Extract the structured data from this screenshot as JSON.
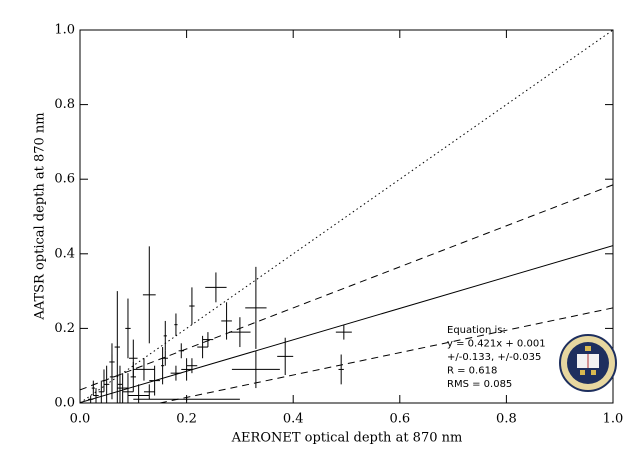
{
  "chart_data": {
    "type": "scatter",
    "x_label": "AERONET optical depth at 870 nm",
    "y_label": "AATSR optical depth at 870 nm",
    "xlim": [
      0,
      1
    ],
    "ylim": [
      0,
      1
    ],
    "xticks": [
      {
        "value": 0,
        "label": "0.0"
      },
      0.2,
      0.4,
      0.6,
      0.8,
      {
        "value": 1,
        "label": "1.0"
      }
    ],
    "yticks": [
      {
        "value": 0,
        "label": "0.0"
      },
      0.2,
      0.4,
      0.6,
      0.8,
      {
        "value": 1,
        "label": "1.0"
      }
    ],
    "color": "#000000",
    "points": {
      "x": [
        0.13,
        0.255,
        0.33,
        0.33,
        0.385,
        0.495,
        0.49,
        0.275,
        0.3,
        0.21,
        0.18,
        0.23,
        0.2,
        0.21,
        0.16,
        0.2,
        0.07,
        0.09,
        0.1,
        0.12,
        0.14,
        0.155,
        0.05,
        0.04,
        0.06,
        0.08,
        0.03,
        0.025,
        0.09,
        0.11,
        0.06,
        0.045,
        0.1,
        0.13,
        0.02,
        0.075,
        0.16,
        0.18,
        0.19,
        0.24
      ],
      "y": [
        0.29,
        0.31,
        0.255,
        0.09,
        0.125,
        0.19,
        0.09,
        0.22,
        0.19,
        0.26,
        0.21,
        0.15,
        0.09,
        0.1,
        0.12,
        0.01,
        0.15,
        0.2,
        0.12,
        0.09,
        0.06,
        0.1,
        0.05,
        0.03,
        0.07,
        0.04,
        0.02,
        0.04,
        0.03,
        0.02,
        0.11,
        0.06,
        0.07,
        0.03,
        0.01,
        0.05,
        0.18,
        0.08,
        0.14,
        0.17
      ],
      "xerr": [
        0.012,
        0.02,
        0.02,
        0.045,
        0.015,
        0.015,
        0.005,
        0.01,
        0.02,
        0.005,
        0.003,
        0.01,
        0.01,
        0.01,
        0.005,
        0.1,
        0.005,
        0.005,
        0.008,
        0.02,
        0.01,
        0.003,
        0.005,
        0.005,
        0.004,
        0.01,
        0.005,
        0.003,
        0.01,
        0.02,
        0.005,
        0.003,
        0.005,
        0.01,
        0.005,
        0.004,
        0.003,
        0.01,
        0.005,
        0.01
      ],
      "yerr": [
        0.13,
        0.04,
        0.11,
        0.05,
        0.05,
        0.02,
        0.04,
        0.05,
        0.04,
        0.05,
        0.03,
        0.03,
        0.03,
        0.02,
        0.02,
        0.005,
        0.15,
        0.08,
        0.05,
        0.03,
        0.04,
        0.05,
        0.05,
        0.03,
        0.06,
        0.04,
        0.02,
        0.02,
        0.05,
        0.03,
        0.05,
        0.03,
        0.04,
        0.02,
        0.01,
        0.05,
        0.04,
        0.02,
        0.02,
        0.02
      ]
    },
    "lines": [
      {
        "style": "dotted",
        "x": [
          0,
          1
        ],
        "y": [
          0,
          1
        ]
      },
      {
        "style": "dashed",
        "x": [
          0,
          1
        ],
        "y": [
          0.035,
          0.585
        ]
      },
      {
        "style": "solid",
        "x": [
          0,
          1
        ],
        "y": [
          0.001,
          0.422
        ]
      },
      {
        "style": "dashed",
        "x": [
          0.15,
          1
        ],
        "y": [
          0,
          0.255
        ]
      }
    ],
    "annotation": [
      "Equation is:",
      "y = 0.421x + 0.001",
      "+/-0.133, +/-0.035",
      "R = 0.618",
      "RMS = 0.085"
    ]
  }
}
